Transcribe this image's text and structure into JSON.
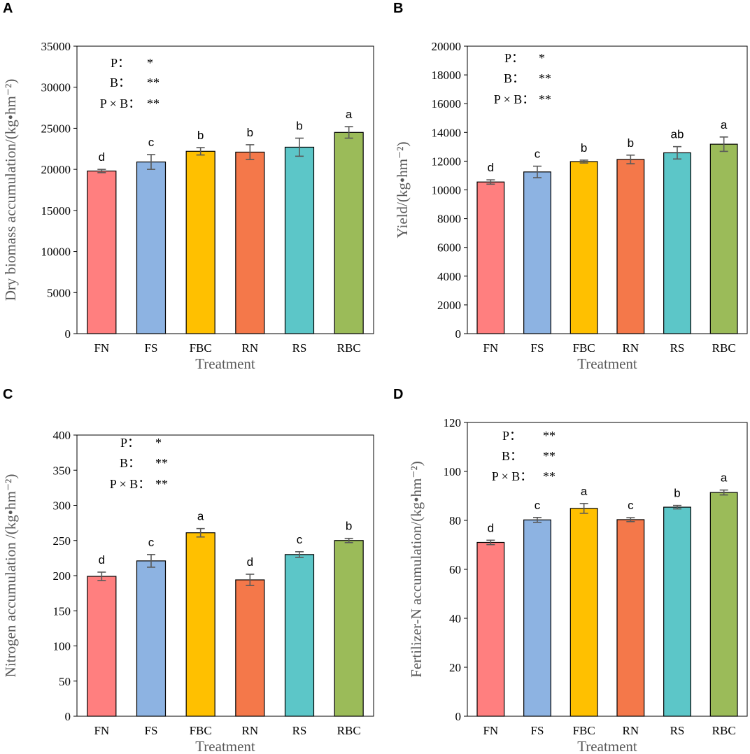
{
  "chart_data": [
    {
      "panel": "A",
      "type": "bar",
      "categories": [
        "FN",
        "FS",
        "FBC",
        "RN",
        "RS",
        "RBC"
      ],
      "values": [
        19800,
        20900,
        22200,
        22100,
        22700,
        24500
      ],
      "errors": [
        200,
        900,
        450,
        900,
        1100,
        700
      ],
      "significance": [
        "d",
        "c",
        "b",
        "b",
        "b",
        "a"
      ],
      "colors": [
        "#FF7F7F",
        "#8DB3E2",
        "#FFC000",
        "#F4784A",
        "#5CC6C8",
        "#9BBB59"
      ],
      "xlabel": "Treatment",
      "ylabel": "Dry biomass accumulation/(kg•hm⁻²)",
      "ylim": [
        0,
        35000
      ],
      "yticks": [
        0,
        5000,
        10000,
        15000,
        20000,
        25000,
        30000,
        35000
      ],
      "stats": [
        {
          "label": "P：",
          "value": "*"
        },
        {
          "label": "B：",
          "value": "**"
        },
        {
          "label": "P × B：",
          "value": "**"
        }
      ]
    },
    {
      "panel": "B",
      "type": "bar",
      "categories": [
        "FN",
        "FS",
        "FBC",
        "RN",
        "RS",
        "RBC"
      ],
      "values": [
        10550,
        11250,
        11970,
        12120,
        12580,
        13180
      ],
      "errors": [
        150,
        400,
        100,
        300,
        430,
        500
      ],
      "significance": [
        "d",
        "c",
        "b",
        "b",
        "ab",
        "a"
      ],
      "colors": [
        "#FF7F7F",
        "#8DB3E2",
        "#FFC000",
        "#F4784A",
        "#5CC6C8",
        "#9BBB59"
      ],
      "xlabel": "Treatment",
      "ylabel": "Yield/(kg•hm⁻²)",
      "ylim": [
        0,
        20000
      ],
      "yticks": [
        0,
        2000,
        4000,
        6000,
        8000,
        10000,
        12000,
        14000,
        16000,
        18000,
        20000
      ],
      "stats": [
        {
          "label": "P：",
          "value": "*"
        },
        {
          "label": "B：",
          "value": "**"
        },
        {
          "label": "P × B：",
          "value": "**"
        }
      ]
    },
    {
      "panel": "C",
      "type": "bar",
      "categories": [
        "FN",
        "FS",
        "FBC",
        "RN",
        "RS",
        "RBC"
      ],
      "values": [
        199,
        221,
        261,
        194,
        230,
        250
      ],
      "errors": [
        6,
        9,
        6,
        8,
        4,
        3
      ],
      "significance": [
        "d",
        "c",
        "a",
        "d",
        "c",
        "b"
      ],
      "colors": [
        "#FF7F7F",
        "#8DB3E2",
        "#FFC000",
        "#F4784A",
        "#5CC6C8",
        "#9BBB59"
      ],
      "xlabel": "Treatment",
      "ylabel": "Nitrogen accumulation /(kg•hm⁻²)",
      "ylim": [
        0,
        400
      ],
      "yticks": [
        0,
        50,
        100,
        150,
        200,
        250,
        300,
        350,
        400
      ],
      "stats": [
        {
          "label": "P：",
          "value": "*"
        },
        {
          "label": "B：",
          "value": "**"
        },
        {
          "label": "P × B：",
          "value": "**"
        }
      ]
    },
    {
      "panel": "D",
      "type": "bar",
      "categories": [
        "FN",
        "FS",
        "FBC",
        "RN",
        "RS",
        "RBC"
      ],
      "values": [
        71,
        80.2,
        84.9,
        80.3,
        85.4,
        91.4
      ],
      "errors": [
        0.9,
        1.0,
        2.0,
        0.8,
        0.7,
        1.0
      ],
      "significance": [
        "d",
        "c",
        "a",
        "c",
        "b",
        "a"
      ],
      "colors": [
        "#FF7F7F",
        "#8DB3E2",
        "#FFC000",
        "#F4784A",
        "#5CC6C8",
        "#9BBB59"
      ],
      "xlabel": "Treatment",
      "ylabel": "Fertilizer-N accumulation/(kg•hm⁻²)",
      "ylim": [
        0,
        120
      ],
      "yticks": [
        0,
        20,
        40,
        60,
        80,
        100,
        120
      ],
      "stats": [
        {
          "label": "P：",
          "value": "**"
        },
        {
          "label": "B：",
          "value": "**"
        },
        {
          "label": "P × B：",
          "value": "**"
        }
      ]
    }
  ]
}
